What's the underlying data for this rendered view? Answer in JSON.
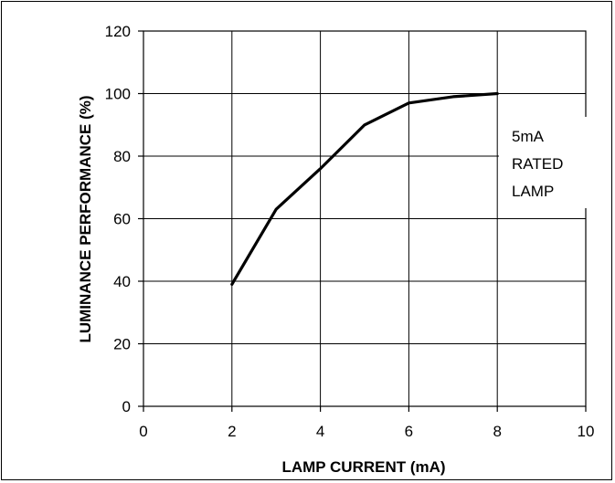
{
  "chart_data": {
    "type": "line",
    "title": "",
    "xlabel": "LAMP CURRENT (mA)",
    "ylabel": "LUMINANCE PERFORMANCE (%)",
    "xlim": [
      0,
      10
    ],
    "ylim": [
      0,
      120
    ],
    "x_ticks": [
      0,
      2,
      4,
      6,
      8,
      10
    ],
    "y_ticks": [
      0,
      20,
      40,
      60,
      80,
      100,
      120
    ],
    "grid": true,
    "series": [
      {
        "x": [
          2,
          3,
          4,
          5,
          6,
          7,
          8
        ],
        "y": [
          39,
          63,
          76,
          90,
          97,
          99,
          100
        ]
      }
    ],
    "annotations": [
      "5mA",
      "RATED",
      "LAMP"
    ]
  }
}
